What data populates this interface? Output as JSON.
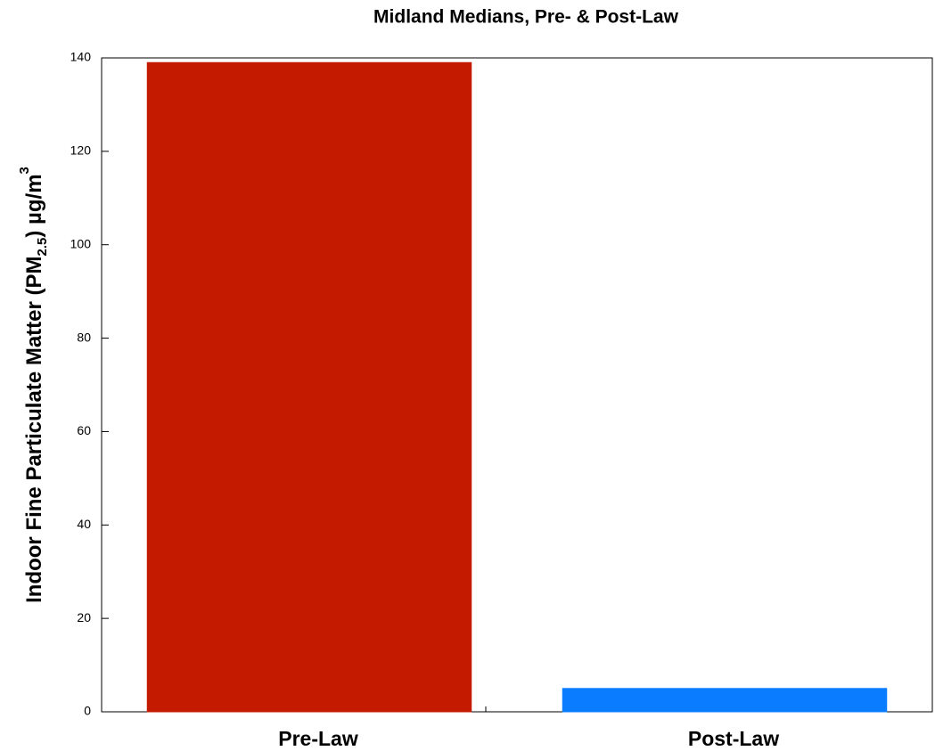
{
  "chart_data": {
    "type": "bar",
    "title": "Midland Medians, Pre- & Post-Law",
    "y_label": [
      "Indoor Fine Particulate Matter (PM",
      "2.5",
      ") µg/m",
      "3"
    ],
    "categories": [
      "Pre-Law",
      "Post-Law"
    ],
    "values": [
      139,
      5
    ],
    "colors": [
      "#c41a00",
      "#0a7cff"
    ],
    "ylim": [
      0,
      140
    ],
    "yticks": [
      0,
      20,
      40,
      60,
      80,
      100,
      120,
      140
    ],
    "grid": false
  }
}
